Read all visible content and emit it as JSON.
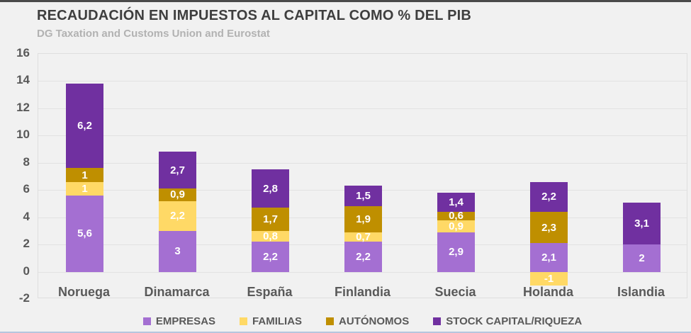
{
  "header": {
    "title": "RECAUDACIÓN EN IMPUESTOS AL CAPITAL COMO % DEL PIB",
    "subtitle": "DG Taxation and Customs Union and Eurostat"
  },
  "colors": {
    "empresas": "#a46fd2",
    "familias": "#ffd966",
    "autonomos": "#bf8f00",
    "stock": "#7030a0",
    "axis_text": "#595959",
    "title_text": "#3e3e3e",
    "subtitle_text": "#b2b2b2",
    "background": "#f1f1f1",
    "gridline": "#e2e2e2"
  },
  "chart_data": {
    "type": "bar",
    "stacked": true,
    "title": "RECAUDACIÓN EN IMPUESTOS AL CAPITAL COMO % DEL PIB",
    "subtitle": "DG Taxation and Customs Union and Eurostat",
    "categories": [
      "Noruega",
      "Dinamarca",
      "España",
      "Finlandia",
      "Suecia",
      "Holanda",
      "Islandia"
    ],
    "series": [
      {
        "name": "EMPRESAS",
        "color": "#a46fd2",
        "values": [
          5.6,
          3,
          2.2,
          2.2,
          2.9,
          2.1,
          2
        ],
        "labels": [
          "5,6",
          "3",
          "2,2",
          "2,2",
          "2,9",
          "2,1",
          "2"
        ]
      },
      {
        "name": "FAMILIAS",
        "color": "#ffd966",
        "values": [
          1,
          2.2,
          0.8,
          0.7,
          0.9,
          -1,
          0
        ],
        "labels": [
          "1",
          "2,2",
          "0,8",
          "0,7",
          "0,9",
          "-1",
          ""
        ]
      },
      {
        "name": "AUTÓNOMOS",
        "color": "#bf8f00",
        "values": [
          1,
          0.9,
          1.7,
          1.9,
          0.6,
          2.3,
          0
        ],
        "labels": [
          "1",
          "0,9",
          "1,7",
          "1,9",
          "0,6",
          "2,3",
          ""
        ]
      },
      {
        "name": "STOCK CAPITAL/RIQUEZA",
        "color": "#7030a0",
        "values": [
          6.2,
          2.7,
          2.8,
          1.5,
          1.4,
          2.2,
          3.1
        ],
        "labels": [
          "6,2",
          "2,7",
          "2,8",
          "1,5",
          "1,4",
          "2,2",
          "3,1"
        ]
      }
    ],
    "y_axis": {
      "min": -2,
      "max": 16,
      "step": 2,
      "ticks": [
        "16",
        "14",
        "12",
        "10",
        "8",
        "6",
        "4",
        "2",
        "0",
        "-2"
      ]
    },
    "xlabel": "",
    "ylabel": "",
    "grid": true,
    "legend_position": "bottom",
    "legend": [
      "EMPRESAS",
      "FAMILIAS",
      "AUTÓNOMOS",
      "STOCK CAPITAL/RIQUEZA"
    ]
  }
}
